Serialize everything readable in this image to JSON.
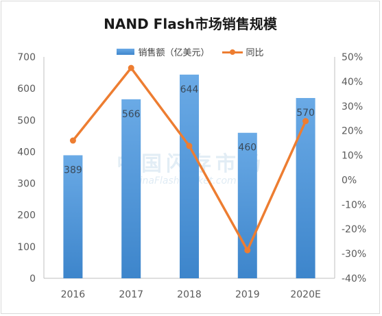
{
  "chart_data": {
    "type": "bar",
    "title": "NAND Flash市场销售规模",
    "categories": [
      "2016",
      "2017",
      "2018",
      "2019",
      "2020E"
    ],
    "series": [
      {
        "name": "销售额（亿美元）",
        "type": "bar",
        "axis": "left",
        "values": [
          389,
          566,
          644,
          460,
          570
        ],
        "color": "#5b9bd5"
      },
      {
        "name": "同比",
        "type": "line",
        "axis": "right",
        "values": [
          16,
          45.5,
          13.8,
          -28.6,
          23.9
        ],
        "color": "#ed7d31"
      }
    ],
    "data_labels": [
      "389",
      "566",
      "644",
      "460",
      "570"
    ],
    "y_left": {
      "min": 0,
      "max": 700,
      "step": 100,
      "ticks": [
        "0",
        "100",
        "200",
        "300",
        "400",
        "500",
        "600",
        "700"
      ]
    },
    "y_right": {
      "min": -40,
      "max": 50,
      "step": 10,
      "ticks": [
        "-40%",
        "-30%",
        "-20%",
        "-10%",
        "0%",
        "10%",
        "20%",
        "30%",
        "40%",
        "50%"
      ]
    },
    "legend_position": "top-center",
    "grid": false,
    "watermark": {
      "main": "中国闪存市场",
      "sub": "ChinaFlashMarket.com"
    }
  }
}
